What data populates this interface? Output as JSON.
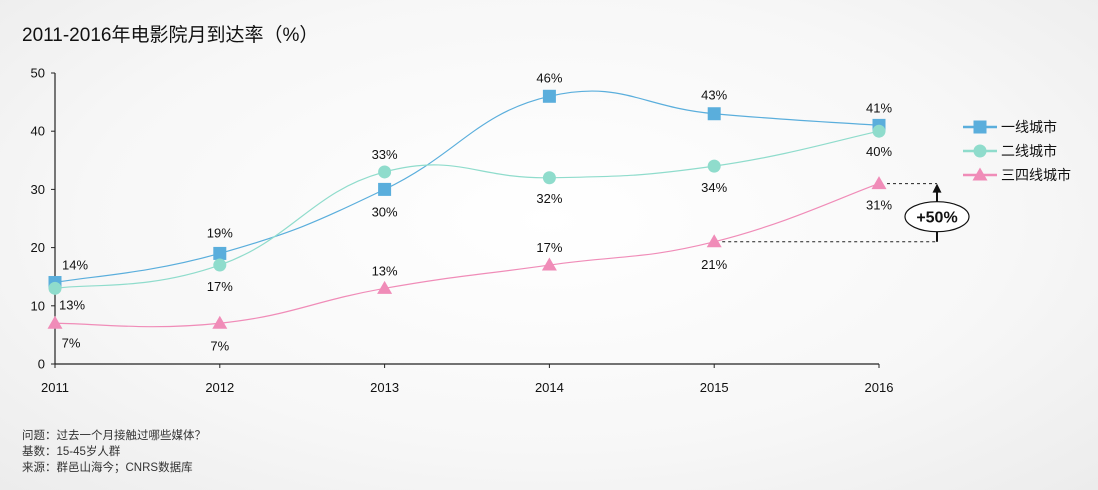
{
  "title": "2011-2016年电影院月到达率（%）",
  "notes": {
    "question": "问题：过去一个月接触过哪些媒体？",
    "base": "基数：15-45岁人群",
    "source": "来源：群邑山海今；CNRS数据库"
  },
  "chart_data": {
    "type": "line",
    "title": "2011-2016年电影院月到达率（%）",
    "x": [
      "2011",
      "2012",
      "2013",
      "2014",
      "2015",
      "2016"
    ],
    "ylim": [
      0,
      50
    ],
    "yticks": [
      0,
      10,
      20,
      30,
      40,
      50
    ],
    "grid": false,
    "legend": "right",
    "series": [
      {
        "name": "一线城市",
        "marker": "square",
        "color": "#5aaedc",
        "values": [
          14,
          19,
          30,
          46,
          43,
          41
        ],
        "labels": [
          "14%",
          "19%",
          "30%",
          "46%",
          "43%",
          "41%"
        ]
      },
      {
        "name": "二线城市",
        "marker": "circle",
        "color": "#8fdccc",
        "values": [
          13,
          17,
          33,
          32,
          34,
          40
        ],
        "labels": [
          "13%",
          "17%",
          "33%",
          "32%",
          "34%",
          "40%"
        ]
      },
      {
        "name": "三四线城市",
        "marker": "triangle",
        "color": "#f08cb8",
        "values": [
          7,
          7,
          13,
          17,
          21,
          31
        ],
        "labels": [
          "7%",
          "7%",
          "13%",
          "17%",
          "21%",
          "31%"
        ]
      }
    ],
    "annotation": {
      "text": "+50%",
      "from": 21,
      "to": 31
    }
  }
}
